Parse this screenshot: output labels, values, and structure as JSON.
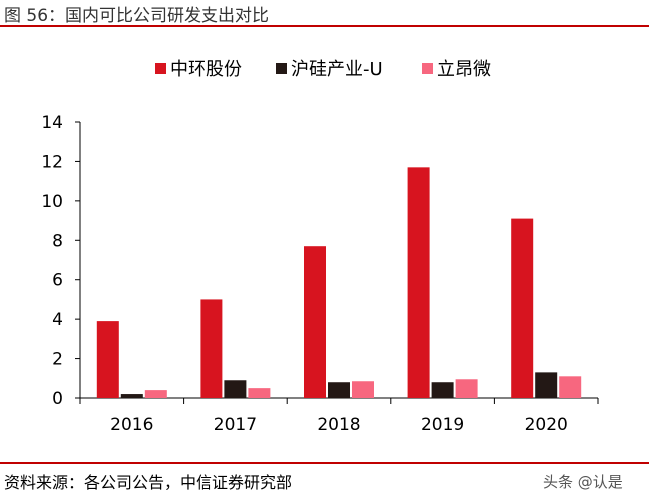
{
  "header": {
    "title": "图 56：国内可比公司研发支出对比"
  },
  "footer": {
    "source": "资料来源：各公司公告，中信证券研究部",
    "watermark": "头条 @认是"
  },
  "colors": {
    "rule": "#c00000"
  },
  "chart_data": {
    "type": "bar",
    "title": "",
    "xlabel": "",
    "ylabel": "",
    "categories": [
      "2016",
      "2017",
      "2018",
      "2019",
      "2020"
    ],
    "series": [
      {
        "name": "中环股份",
        "color": "#d7141f",
        "values": [
          3.9,
          5.0,
          7.7,
          11.7,
          9.1
        ]
      },
      {
        "name": "沪硅产业-U",
        "color": "#231815",
        "values": [
          0.2,
          0.9,
          0.8,
          0.8,
          1.3
        ]
      },
      {
        "name": "立昂微",
        "color": "#f7677f",
        "values": [
          0.4,
          0.5,
          0.85,
          0.95,
          1.1
        ]
      }
    ],
    "ylim": [
      0,
      14
    ],
    "yticks": [
      0,
      2,
      4,
      6,
      8,
      10,
      12,
      14
    ],
    "grid": false,
    "legend_position": "top"
  }
}
